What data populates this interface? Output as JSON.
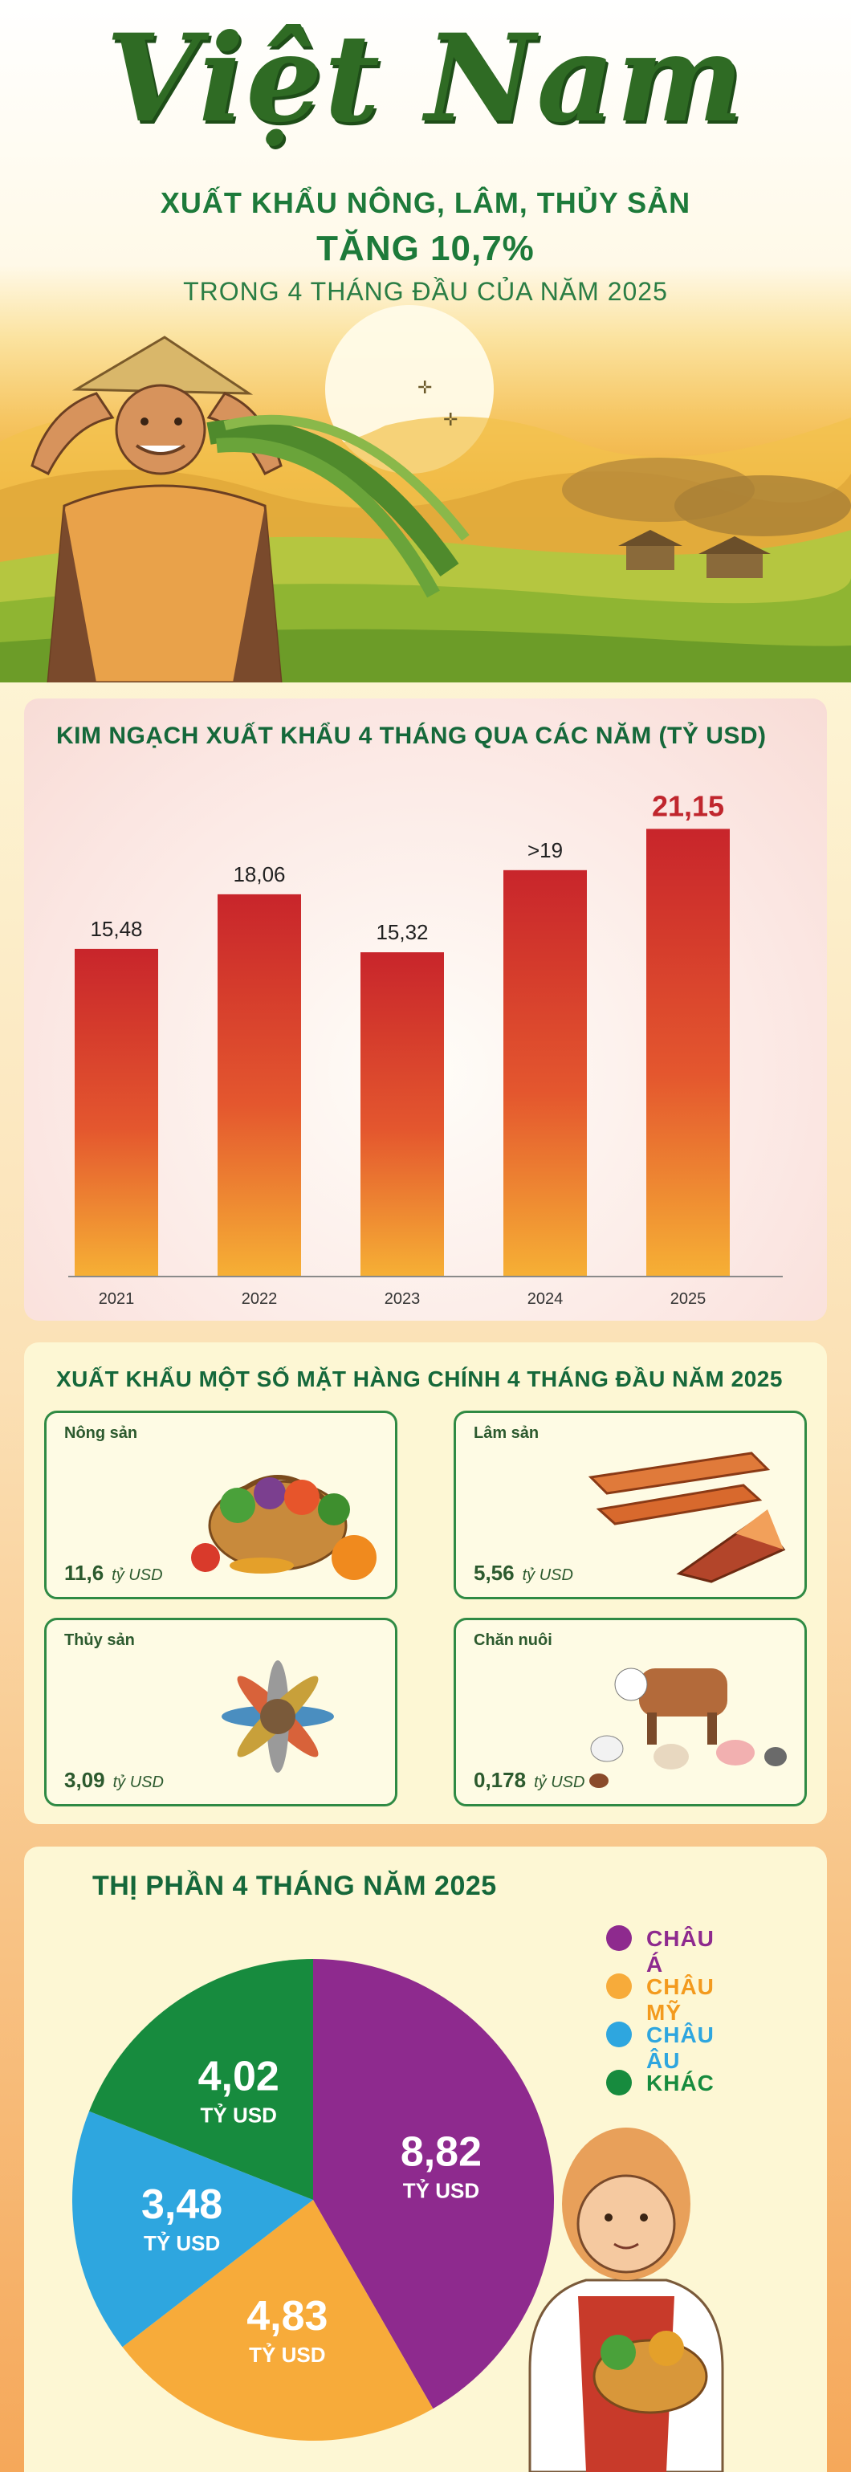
{
  "header": {
    "brand": "Việt Nam",
    "line1": "XUẤT KHẨU NÔNG, LÂM, THỦY SẢN",
    "line2": "TĂNG 10,7%",
    "line3": "TRONG 4 THÁNG ĐẦU CỦA NĂM 2025"
  },
  "bar_section": {
    "title": "KIM NGẠCH XUẤT KHẨU 4 THÁNG QUA CÁC NĂM (TỶ USD)"
  },
  "chart_data": [
    {
      "type": "bar",
      "title": "KIM NGẠCH XUẤT KHẨU 4 THÁNG QUA CÁC NĂM (TỶ USD)",
      "categories": [
        "2021",
        "2022",
        "2023",
        "2024",
        "2025"
      ],
      "values": [
        15.48,
        18.06,
        15.32,
        19.2,
        21.15
      ],
      "labels": [
        "15,48",
        "18,06",
        "15,32",
        ">19",
        "21,15"
      ],
      "ylim": [
        0,
        22
      ],
      "highlight_index": 4,
      "colors": {
        "top": "#c8252b",
        "bottom": "#f6b035",
        "highlight_label": "#c0262d"
      }
    },
    {
      "type": "pie",
      "title": "THỊ PHẦN 4 THÁNG NĂM 2025",
      "unit": "TỶ USD",
      "slices": [
        {
          "name": "CHÂU Á",
          "value": 8.82,
          "label": "8,82",
          "color": "#8e2a8e"
        },
        {
          "name": "CHÂU MỸ",
          "value": 4.83,
          "label": "4,83",
          "color": "#f7ab3a"
        },
        {
          "name": "CHÂU ÂU",
          "value": 3.48,
          "label": "3,48",
          "color": "#2ea6df"
        },
        {
          "name": "KHÁC",
          "value": 4.02,
          "label": "4,02",
          "color": "#178b3e"
        }
      ]
    }
  ],
  "products": {
    "title": "XUẤT KHẨU MỘT SỐ MẶT HÀNG CHÍNH 4 THÁNG ĐẦU NĂM 2025",
    "unit": "tỷ USD",
    "items": [
      {
        "name": "Nông sản",
        "value": "11,6",
        "icon": "vegetable-basket-icon"
      },
      {
        "name": "Lâm sản",
        "value": "5,56",
        "icon": "timber-planks-icon"
      },
      {
        "name": "Thủy sản",
        "value": "3,09",
        "icon": "fish-icon"
      },
      {
        "name": "Chăn nuôi",
        "value": "0,178",
        "icon": "livestock-icon"
      }
    ]
  },
  "market": {
    "title": "THỊ PHẦN 4 THÁNG NĂM 2025"
  }
}
